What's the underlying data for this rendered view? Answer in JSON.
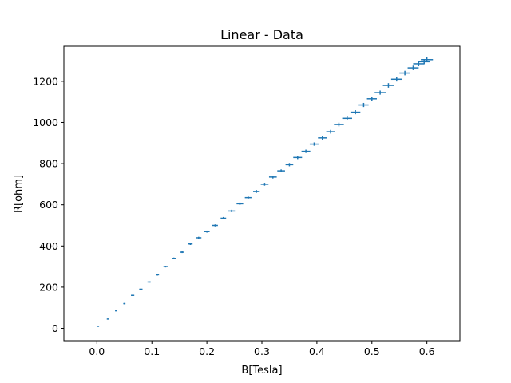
{
  "chart_data": {
    "type": "scatter",
    "title": "Linear - Data",
    "xlabel": "B[Tesla]",
    "ylabel": "R[ohm]",
    "xlim": [
      -0.06,
      0.66
    ],
    "ylim": [
      -60,
      1370
    ],
    "xticks": [
      0.0,
      0.1,
      0.2,
      0.3,
      0.4,
      0.5,
      0.6
    ],
    "xtick_labels": [
      "0.0",
      "0.1",
      "0.2",
      "0.3",
      "0.4",
      "0.5",
      "0.6"
    ],
    "yticks": [
      0,
      200,
      400,
      600,
      800,
      1000,
      1200
    ],
    "ytick_labels": [
      "0",
      "200",
      "400",
      "600",
      "800",
      "1000",
      "1200"
    ],
    "grid": false,
    "error_bars": true,
    "series_color": "#1f77b4",
    "series": [
      {
        "x": [
          0.002,
          0.02,
          0.035,
          0.05,
          0.065,
          0.08,
          0.095,
          0.11,
          0.125,
          0.14,
          0.155,
          0.17,
          0.185,
          0.2,
          0.215,
          0.23,
          0.245,
          0.26,
          0.275,
          0.29,
          0.305,
          0.32,
          0.335,
          0.35,
          0.365,
          0.38,
          0.395,
          0.41,
          0.425,
          0.44,
          0.455,
          0.47,
          0.485,
          0.5,
          0.515,
          0.53,
          0.545,
          0.56,
          0.575,
          0.585,
          0.595,
          0.6
        ],
        "y": [
          10,
          45,
          85,
          120,
          160,
          190,
          225,
          260,
          300,
          340,
          370,
          410,
          440,
          470,
          500,
          535,
          570,
          605,
          635,
          665,
          700,
          735,
          765,
          795,
          830,
          860,
          895,
          925,
          955,
          990,
          1020,
          1050,
          1085,
          1115,
          1145,
          1180,
          1210,
          1240,
          1265,
          1285,
          1295,
          1305
        ],
        "x_err": [
          0.002,
          0.002,
          0.002,
          0.002,
          0.003,
          0.003,
          0.003,
          0.003,
          0.004,
          0.004,
          0.004,
          0.004,
          0.005,
          0.005,
          0.005,
          0.005,
          0.006,
          0.006,
          0.006,
          0.006,
          0.007,
          0.007,
          0.007,
          0.007,
          0.008,
          0.008,
          0.008,
          0.008,
          0.008,
          0.009,
          0.009,
          0.009,
          0.009,
          0.009,
          0.01,
          0.01,
          0.01,
          0.01,
          0.01,
          0.01,
          0.01,
          0.011
        ],
        "y_err": [
          2,
          2,
          2,
          3,
          3,
          3,
          3,
          4,
          4,
          4,
          4,
          5,
          5,
          5,
          5,
          6,
          6,
          6,
          6,
          7,
          7,
          7,
          7,
          8,
          8,
          8,
          8,
          9,
          9,
          9,
          9,
          10,
          10,
          10,
          10,
          11,
          11,
          11,
          11,
          12,
          12,
          12
        ]
      }
    ]
  }
}
